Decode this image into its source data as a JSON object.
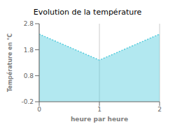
{
  "chart_data": {
    "type": "area",
    "title": "Evolution de la température",
    "xlabel": "heure par heure",
    "ylabel": "Température en °C",
    "x": [
      0,
      1,
      2
    ],
    "values": [
      2.4,
      1.4,
      2.4
    ],
    "xlim": [
      0,
      2
    ],
    "ylim": [
      -0.2,
      2.8
    ],
    "xticks": [
      0,
      1,
      2
    ],
    "yticks": [
      -0.2,
      0.8,
      1.8,
      2.8
    ],
    "color": "#55ccdd",
    "line_style": "dotted",
    "grid": "x"
  }
}
